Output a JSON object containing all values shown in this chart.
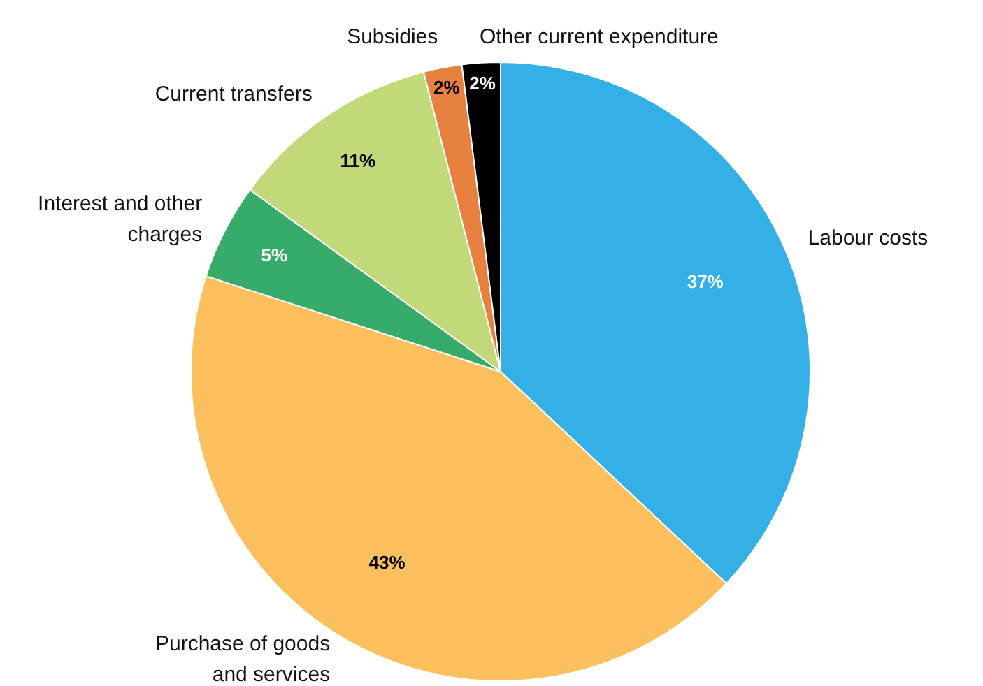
{
  "chart_data": {
    "type": "pie",
    "categories": [
      "Labour costs",
      "Purchase of goods and services",
      "Interest and other charges",
      "Current transfers",
      "Subsidies",
      "Other current expenditure"
    ],
    "values": [
      37,
      43,
      5,
      11,
      2,
      2
    ],
    "colors": [
      "#35b0e6",
      "#fbc05d",
      "#36ab6a",
      "#c2d97a",
      "#e8813f",
      "#000000"
    ],
    "value_labels": [
      "37%",
      "43%",
      "5%",
      "11%",
      "2%",
      "2%"
    ],
    "legend": false
  }
}
